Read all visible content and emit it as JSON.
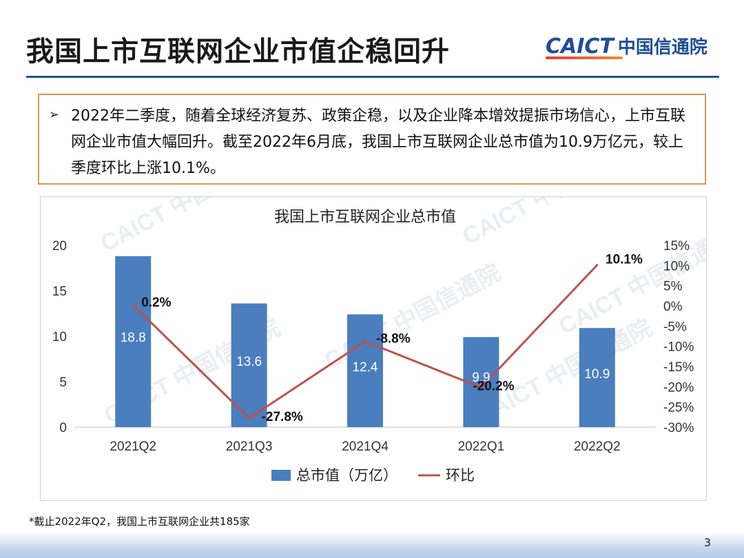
{
  "slide": {
    "title": "我国上市互联网企业市值企稳回升",
    "logo_en": "CAICT",
    "logo_cn": "中国信通院",
    "bullet_marker": "➢",
    "bullet_text": "2022年二季度，随着全球经济复苏、政策企稳，以及企业降本增效提振市场信心，上市互联网企业市值大幅回升。截至2022年6月底，我国上市互联网企业总市值为10.9万亿元，较上季度环比上涨10.1%。",
    "footnote": "*截止2022年Q2，我国上市互联网企业共185家",
    "page_number": "3",
    "watermark": "CAICT 中国信通院"
  },
  "colors": {
    "accent": "#1f4e96",
    "bar": "#4a7ebf",
    "line": "#c0504d",
    "box_border": "#e0954a"
  },
  "chart_data": {
    "type": "bar",
    "title": "我国上市互联网企业总市值",
    "categories": [
      "2021Q2",
      "2021Q3",
      "2021Q4",
      "2022Q1",
      "2022Q2"
    ],
    "series": [
      {
        "name": "总市值（万亿）",
        "type": "bar",
        "axis": "left",
        "values": [
          18.8,
          13.6,
          12.4,
          9.9,
          10.9
        ],
        "labels": [
          "18.8",
          "13.6",
          "12.4",
          "9.9",
          "10.9"
        ]
      },
      {
        "name": "环比",
        "type": "line",
        "axis": "right",
        "values": [
          0.2,
          -27.8,
          -8.8,
          -20.2,
          10.1
        ],
        "labels": [
          "0.2%",
          "-27.8%",
          "-8.8%",
          "-20.2%",
          "10.1%"
        ]
      }
    ],
    "y_left": {
      "ylim": [
        0,
        20
      ],
      "ticks": [
        "0",
        "5",
        "10",
        "15",
        "20"
      ]
    },
    "y_right": {
      "ylim": [
        -30,
        15
      ],
      "ticks": [
        "-30%",
        "-25%",
        "-20%",
        "-15%",
        "-10%",
        "-5%",
        "0%",
        "5%",
        "10%",
        "15%"
      ]
    },
    "legend_position": "bottom",
    "grid": false
  }
}
